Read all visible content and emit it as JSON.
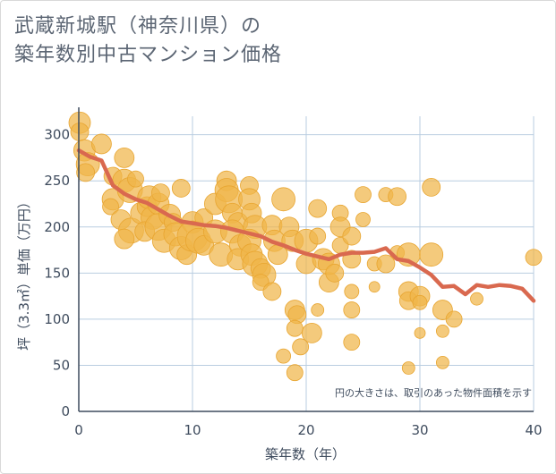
{
  "title_lines": [
    "武蔵新城駅（神奈川県）の",
    "築年数別中古マンション価格"
  ],
  "colors": {
    "bubble_fill": "#f0b54a",
    "bubble_stroke": "#e8a530",
    "line": "#d9694f",
    "grid": "#b9cde0",
    "axis": "#3f4c5e"
  },
  "chart_data": {
    "type": "scatter",
    "title": "武蔵新城駅（神奈川県）の築年数別中古マンション価格",
    "xlabel": "築年数（年）",
    "ylabel": "坪（3.3㎡）単価（万円）",
    "xlim": [
      0,
      40
    ],
    "ylim": [
      0,
      320
    ],
    "xticks": [
      "0",
      "10",
      "20",
      "30",
      "40"
    ],
    "yticks": [
      "0",
      "50",
      "100",
      "150",
      "200",
      "250",
      "300"
    ],
    "grid": true,
    "annotation": "円の大きさは、取引のあった物件面積を示す",
    "series": [
      {
        "type": "line",
        "x": [
          0,
          1,
          2,
          3,
          4,
          5,
          6,
          7,
          8,
          9,
          10,
          11,
          12,
          13,
          14,
          15,
          16,
          17,
          18,
          19,
          20,
          21,
          22,
          23,
          24,
          25,
          26,
          27,
          28,
          29,
          30,
          31,
          32,
          33,
          34,
          35,
          36,
          37,
          38,
          39,
          40
        ],
        "y": [
          283,
          276,
          272,
          245,
          236,
          230,
          226,
          219,
          212,
          206,
          204,
          202,
          201,
          199,
          196,
          193,
          190,
          184,
          180,
          175,
          171,
          168,
          165,
          170,
          172,
          172,
          173,
          177,
          165,
          163,
          156,
          148,
          135,
          136,
          127,
          137,
          135,
          137,
          136,
          133,
          120
        ]
      },
      {
        "type": "bubble",
        "points": [
          [
            0,
            313,
            12
          ],
          [
            0,
            303,
            10
          ],
          [
            0.5,
            283,
            12
          ],
          [
            0.8,
            268,
            13
          ],
          [
            0.6,
            259,
            10
          ],
          [
            2,
            290,
            11
          ],
          [
            3,
            255,
            10
          ],
          [
            3,
            230,
            12
          ],
          [
            2.8,
            222,
            9
          ],
          [
            4,
            275,
            11
          ],
          [
            4,
            250,
            13
          ],
          [
            4.5,
            240,
            14
          ],
          [
            5,
            252,
            9
          ],
          [
            3.7,
            208,
            11
          ],
          [
            4.6,
            196,
            14
          ],
          [
            4,
            187,
            11
          ],
          [
            5.5,
            215,
            12
          ],
          [
            6,
            222,
            11
          ],
          [
            6.2,
            232,
            13
          ],
          [
            6.5,
            210,
            13
          ],
          [
            5.8,
            195,
            11
          ],
          [
            7,
            225,
            12
          ],
          [
            7.2,
            237,
            10
          ],
          [
            7,
            200,
            15
          ],
          [
            7.5,
            185,
            13
          ],
          [
            8,
            213,
            12
          ],
          [
            8.3,
            205,
            10
          ],
          [
            8.5,
            192,
            13
          ],
          [
            9,
            242,
            10
          ],
          [
            9,
            177,
            13
          ],
          [
            9.5,
            170,
            11
          ],
          [
            10,
            205,
            12
          ],
          [
            10,
            190,
            17
          ],
          [
            10.5,
            185,
            14
          ],
          [
            11,
            210,
            10
          ],
          [
            11,
            180,
            11
          ],
          [
            12,
            225,
            12
          ],
          [
            12,
            195,
            13
          ],
          [
            12.5,
            170,
            13
          ],
          [
            13,
            250,
            11
          ],
          [
            13,
            240,
            13
          ],
          [
            13.2,
            230,
            15
          ],
          [
            13.5,
            215,
            11
          ],
          [
            14,
            205,
            11
          ],
          [
            13.5,
            195,
            13
          ],
          [
            14.2,
            180,
            12
          ],
          [
            14,
            165,
            12
          ],
          [
            15,
            245,
            10
          ],
          [
            15,
            230,
            12
          ],
          [
            15.2,
            215,
            11
          ],
          [
            15.5,
            200,
            13
          ],
          [
            15,
            185,
            13
          ],
          [
            15.2,
            170,
            12
          ],
          [
            15.5,
            160,
            14
          ],
          [
            16,
            155,
            11
          ],
          [
            16.3,
            148,
            13
          ],
          [
            16,
            140,
            9
          ],
          [
            17,
            202,
            11
          ],
          [
            17.2,
            185,
            12
          ],
          [
            17.5,
            170,
            11
          ],
          [
            17,
            130,
            10
          ],
          [
            18,
            230,
            13
          ],
          [
            18.5,
            200,
            11
          ],
          [
            18.8,
            185,
            12
          ],
          [
            18,
            60,
            8
          ],
          [
            19,
            110,
            11
          ],
          [
            19.2,
            105,
            10
          ],
          [
            19,
            90,
            9
          ],
          [
            19.5,
            70,
            9
          ],
          [
            19,
            42,
            9
          ],
          [
            20,
            185,
            13
          ],
          [
            20,
            160,
            11
          ],
          [
            20.5,
            85,
            11
          ],
          [
            21,
            220,
            10
          ],
          [
            21,
            190,
            9
          ],
          [
            21.5,
            165,
            12
          ],
          [
            22,
            140,
            11
          ],
          [
            21,
            110,
            7
          ],
          [
            22,
            160,
            12
          ],
          [
            22.5,
            150,
            10
          ],
          [
            23,
            215,
            9
          ],
          [
            23,
            200,
            11
          ],
          [
            23,
            180,
            9
          ],
          [
            24,
            190,
            10
          ],
          [
            24,
            165,
            10
          ],
          [
            24,
            130,
            8
          ],
          [
            24,
            110,
            9
          ],
          [
            24,
            75,
            9
          ],
          [
            25,
            235,
            9
          ],
          [
            25,
            208,
            8
          ],
          [
            26,
            160,
            8
          ],
          [
            26,
            135,
            6
          ],
          [
            27,
            235,
            8
          ],
          [
            27,
            160,
            10
          ],
          [
            28,
            233,
            10
          ],
          [
            28,
            172,
            8
          ],
          [
            29,
            170,
            13
          ],
          [
            29,
            130,
            11
          ],
          [
            29,
            120,
            10
          ],
          [
            30,
            125,
            11
          ],
          [
            30,
            118,
            8
          ],
          [
            30,
            85,
            6
          ],
          [
            29,
            47,
            7
          ],
          [
            31,
            243,
            10
          ],
          [
            31,
            170,
            13
          ],
          [
            32,
            110,
            11
          ],
          [
            32,
            87,
            7
          ],
          [
            32,
            53,
            7
          ],
          [
            33,
            100,
            9
          ],
          [
            35,
            122,
            7
          ],
          [
            40,
            167,
            9
          ]
        ]
      }
    ]
  }
}
